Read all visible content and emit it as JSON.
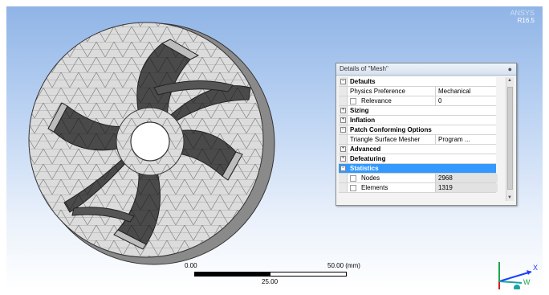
{
  "version": {
    "line1": "ANSYS",
    "line2": "R16.5"
  },
  "details_panel": {
    "title": "Details of \"Mesh\"",
    "pin_icon": "pin-icon",
    "rows": [
      {
        "type": "category",
        "label": "Defaults",
        "toggle": "−"
      },
      {
        "type": "prop",
        "label": "Physics Preference",
        "value": "Mechanical"
      },
      {
        "type": "prop",
        "label": "Relevance",
        "value": "0",
        "checkbox": true
      },
      {
        "type": "category",
        "label": "Sizing",
        "toggle": "+"
      },
      {
        "type": "category",
        "label": "Inflation",
        "toggle": "+"
      },
      {
        "type": "category",
        "label": "Patch Conforming Options",
        "toggle": "−"
      },
      {
        "type": "prop",
        "label": "Triangle Surface Mesher",
        "value": "Program ..."
      },
      {
        "type": "category",
        "label": "Advanced",
        "toggle": "+"
      },
      {
        "type": "category",
        "label": "Defeaturing",
        "toggle": "+"
      },
      {
        "type": "category",
        "label": "Statistics",
        "toggle": "−",
        "selected": true
      },
      {
        "type": "prop",
        "label": "Nodes",
        "value": "2968",
        "checkbox": true,
        "shaded": true
      },
      {
        "type": "prop",
        "label": "Elements",
        "value": "1319",
        "checkbox": true,
        "shaded": true
      }
    ]
  },
  "scale_bar": {
    "start": "0.00",
    "end": "50.00 (mm)",
    "mid": "25.00"
  },
  "triad": {
    "x": "X",
    "y": "Y",
    "z": "Z",
    "w": "W"
  },
  "colors": {
    "selection": "#3399ff",
    "bg_top": "#8fb4e6",
    "triad_x": "#1e3cff",
    "triad_y": "#1aa64a",
    "triad_z": "#d61b1b",
    "triad_w": "#1aa3a3"
  }
}
